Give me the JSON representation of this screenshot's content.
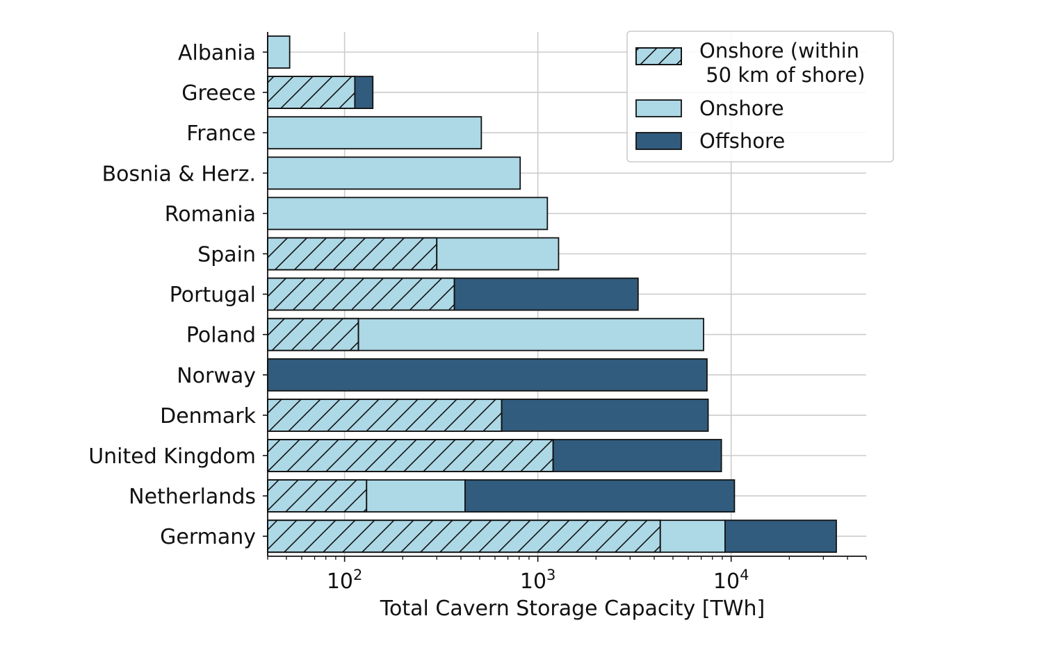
{
  "chart_data": {
    "type": "bar",
    "orientation": "horizontal",
    "stacked": true,
    "x_scale": "log",
    "xlim": [
      40,
      50000
    ],
    "grid": true,
    "legend_placement": "top-right",
    "xlabel": "Total Cavern Storage Capacity [TWh]",
    "x_ticks": [
      {
        "value": 100,
        "base": "10",
        "exp": "2"
      },
      {
        "value": 1000,
        "base": "10",
        "exp": "3"
      },
      {
        "value": 10000,
        "base": "10",
        "exp": "4"
      }
    ],
    "categories": [
      "Albania",
      "Greece",
      "France",
      "Bosnia & Herz.",
      "Romania",
      "Spain",
      "Portugal",
      "Poland",
      "Norway",
      "Denmark",
      "United Kingdom",
      "Netherlands",
      "Germany"
    ],
    "series": [
      {
        "name": "Onshore (within\n 50 km of shore)",
        "legend_lines": [
          "Onshore (within",
          " 50 km of shore)"
        ],
        "color": "#add8e6",
        "hatch": true,
        "values": [
          0,
          113,
          0,
          0,
          0,
          300,
          370,
          118,
          0,
          650,
          1200,
          130,
          4300
        ]
      },
      {
        "name": "Onshore",
        "legend_lines": [
          "Onshore"
        ],
        "color": "#add8e6",
        "hatch": false,
        "values": [
          52,
          0,
          510,
          810,
          1120,
          1280,
          0,
          7200,
          0,
          0,
          0,
          420,
          9300
        ]
      },
      {
        "name": "Offshore",
        "legend_lines": [
          "Offshore"
        ],
        "color": "#315c7d",
        "hatch": false,
        "values": [
          0,
          140,
          0,
          0,
          0,
          0,
          3300,
          0,
          7500,
          7600,
          8900,
          10400,
          35000
        ]
      }
    ],
    "value_note_units": "TWh"
  }
}
